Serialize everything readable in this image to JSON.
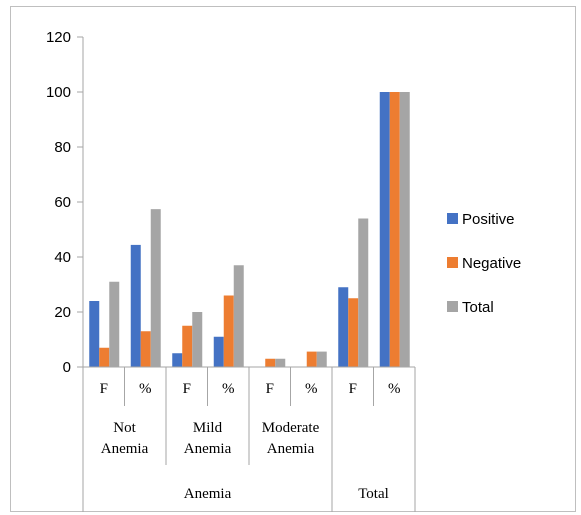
{
  "chart_data": {
    "type": "bar",
    "y_ticks": [
      "0",
      "20",
      "40",
      "60",
      "80",
      "100",
      "120"
    ],
    "ylim": [
      0,
      120
    ],
    "categories": [
      "F",
      "%",
      "F",
      "%",
      "F",
      "%",
      "F",
      "%"
    ],
    "group_labels": [
      [
        "Not",
        "Anemia"
      ],
      [
        "Mild",
        "Anemia"
      ],
      [
        "Moderate",
        "Anemia"
      ],
      []
    ],
    "top_group_labels": [
      "Anemia",
      "Total"
    ],
    "series": [
      {
        "name": "Positive",
        "color": "#4472c4",
        "values": [
          24,
          44.4,
          5,
          11,
          0,
          0,
          29,
          100
        ]
      },
      {
        "name": "Negative",
        "color": "#ed7d31",
        "values": [
          7,
          13,
          15,
          26,
          3,
          5.6,
          25,
          100
        ]
      },
      {
        "name": "Total",
        "color": "#a5a5a5",
        "values": [
          31,
          57.4,
          20,
          37,
          3,
          5.6,
          54,
          100
        ]
      }
    ],
    "legend_position": "right",
    "grid": false
  }
}
